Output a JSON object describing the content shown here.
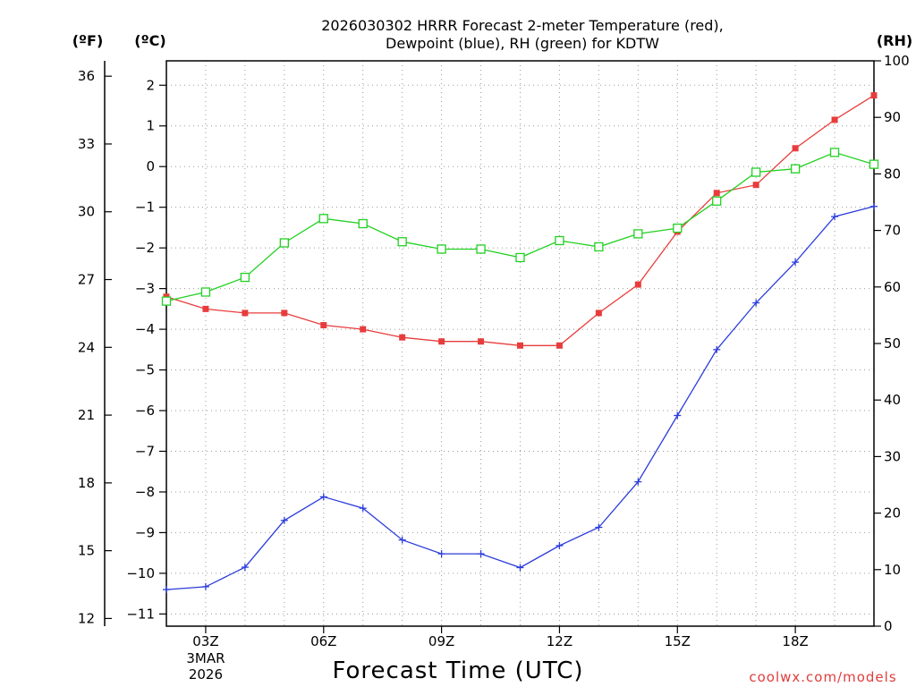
{
  "chart_data": {
    "type": "line",
    "title_line1": "2026030302 HRRR Forecast 2-meter Temperature (red),",
    "title_line2": "Dewpoint (blue), RH (green) for KDTW",
    "xlabel": "Forecast Time (UTC)",
    "credit": "coolwx.com/models",
    "units": {
      "fahrenheit": "(ºF)",
      "celsius": "(ºC)",
      "rh": "(RH)"
    },
    "x": [
      2,
      3,
      4,
      5,
      6,
      7,
      8,
      9,
      10,
      11,
      12,
      13,
      14,
      15,
      16,
      17,
      18,
      19,
      20
    ],
    "xlim": [
      2,
      20
    ],
    "x_ticks": [
      {
        "x": 3,
        "label": "03Z",
        "date1": "3MAR",
        "date2": "2026"
      },
      {
        "x": 6,
        "label": "06Z"
      },
      {
        "x": 9,
        "label": "09Z"
      },
      {
        "x": 12,
        "label": "12Z"
      },
      {
        "x": 15,
        "label": "15Z"
      },
      {
        "x": 18,
        "label": "18Z"
      }
    ],
    "celsius_axis": {
      "lim": [
        -11.3,
        2.6
      ],
      "ticks": [
        2,
        1,
        0,
        -1,
        -2,
        -3,
        -4,
        -5,
        -6,
        -7,
        -8,
        -9,
        -10,
        -11
      ],
      "tick_labels": [
        "2",
        "1",
        "0",
        "−1",
        "−2",
        "−3",
        "−4",
        "−5",
        "−6",
        "−7",
        "−8",
        "−9",
        "−10",
        "−11"
      ]
    },
    "fahrenheit_axis": {
      "ticks": [
        36,
        33,
        30,
        27,
        24,
        21,
        18,
        15,
        12
      ],
      "tick_labels": [
        "36",
        "33",
        "30",
        "27",
        "24",
        "21",
        "18",
        "15",
        "12"
      ]
    },
    "rh_axis": {
      "lim": [
        0,
        100
      ],
      "ticks": [
        100,
        90,
        80,
        70,
        60,
        50,
        40,
        30,
        20,
        10,
        0
      ],
      "tick_labels": [
        "100",
        "90",
        "80",
        "70",
        "60",
        "50",
        "40",
        "30",
        "20",
        "10",
        "0"
      ]
    },
    "series": [
      {
        "name": "Temperature",
        "axis": "celsius",
        "color": "#e83c3c",
        "marker": "filled-square",
        "values": [
          -3.2,
          -3.5,
          -3.6,
          -3.6,
          -3.9,
          -4.0,
          -4.2,
          -4.3,
          -4.3,
          -4.4,
          -4.4,
          -3.6,
          -2.9,
          -1.6,
          -0.65,
          -0.45,
          0.45,
          1.15,
          1.75
        ]
      },
      {
        "name": "Dewpoint",
        "axis": "celsius",
        "color": "#2c3cdc",
        "marker": "plus",
        "values": [
          -10.4,
          -10.33,
          -9.85,
          -8.7,
          -8.12,
          -8.4,
          -9.18,
          -9.52,
          -9.52,
          -9.86,
          -9.32,
          -8.87,
          -7.75,
          -6.12,
          -4.5,
          -3.35,
          -2.35,
          -1.23,
          -0.98
        ]
      },
      {
        "name": "RH",
        "axis": "rh",
        "color": "#22d022",
        "marker": "open-square",
        "values": [
          57.5,
          59.1,
          61.7,
          67.8,
          72.1,
          71.2,
          68.0,
          66.7,
          66.7,
          65.2,
          68.2,
          67.1,
          69.4,
          70.4,
          75.2,
          80.3,
          80.9,
          83.8,
          81.7
        ]
      }
    ]
  }
}
